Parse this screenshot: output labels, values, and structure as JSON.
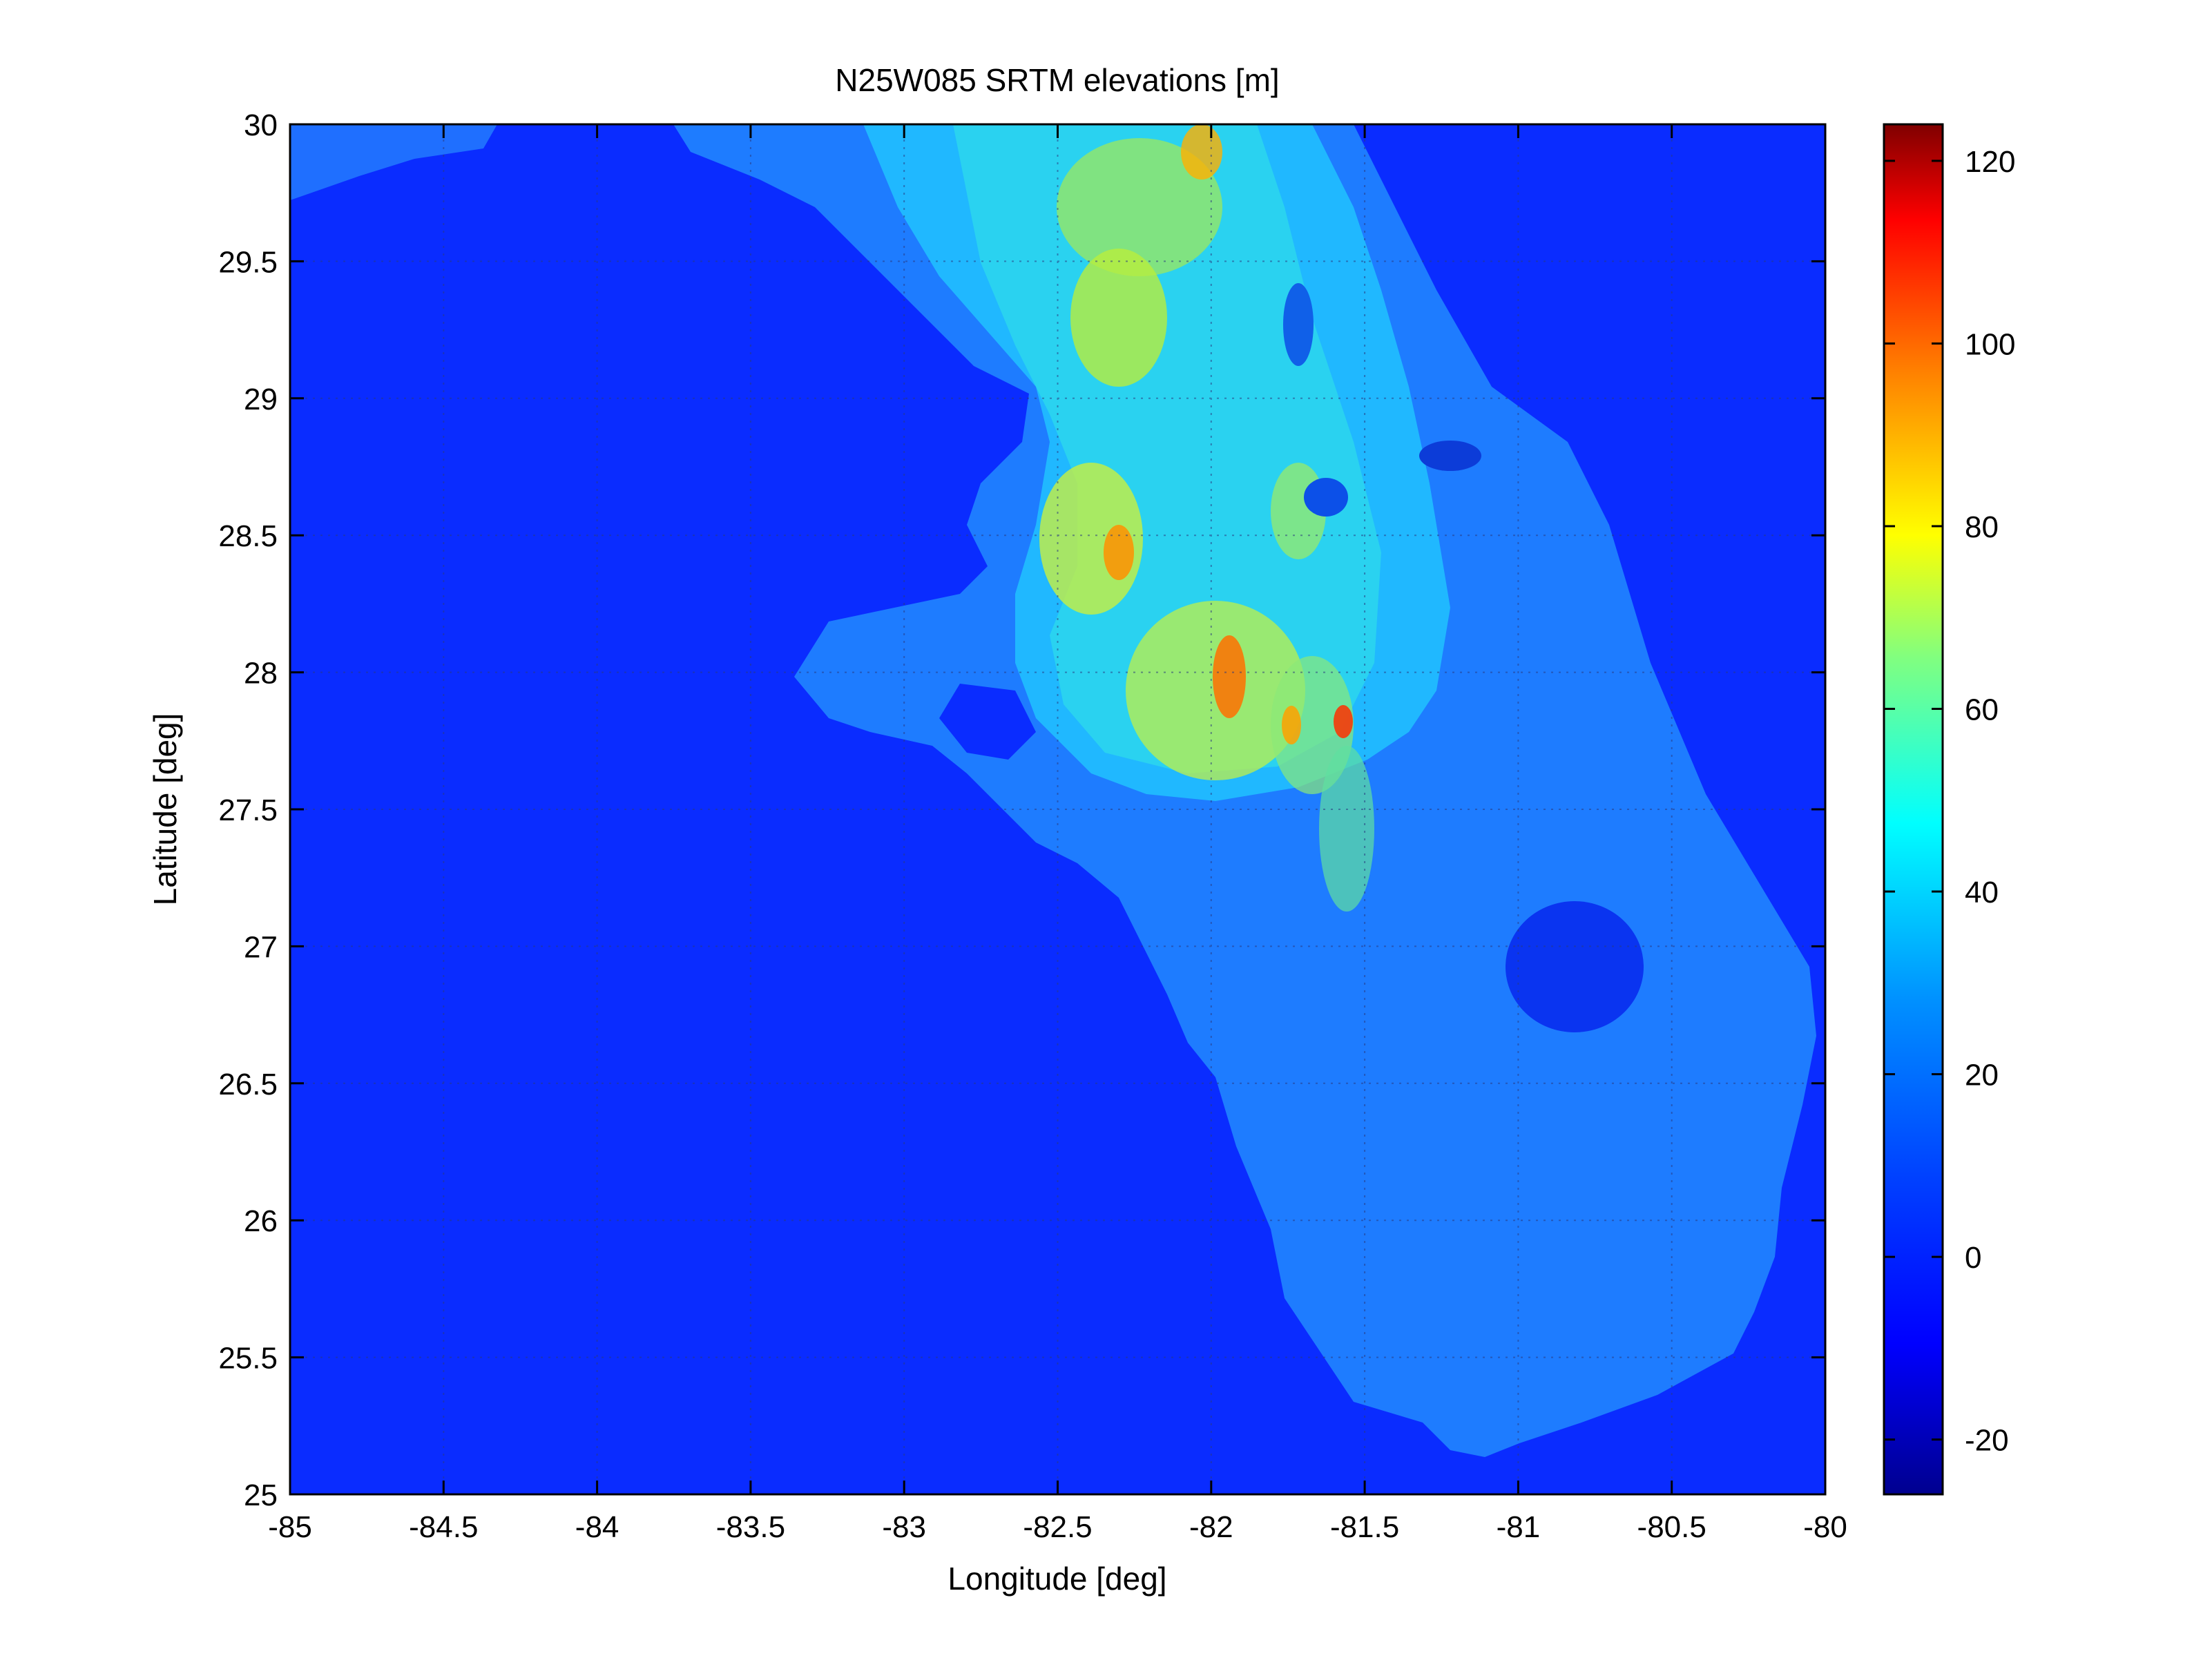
{
  "chart_data": {
    "type": "heatmap",
    "title": "N25W085 SRTM elevations [m]",
    "xlabel": "Longitude [deg]",
    "ylabel": "Latitude [deg]",
    "xlim": [
      -85,
      -80
    ],
    "ylim": [
      25,
      30
    ],
    "x_ticks": [
      "-85",
      "-84.5",
      "-84",
      "-83.5",
      "-83",
      "-82.5",
      "-82",
      "-81.5",
      "-81",
      "-80.5",
      "-80"
    ],
    "y_ticks": [
      "30",
      "29.5",
      "29",
      "28.5",
      "28",
      "27.5",
      "27",
      "26.5",
      "26",
      "25.5",
      "25"
    ],
    "grid": true,
    "colormap": "jet",
    "colorbar": {
      "range": [
        -26,
        124
      ],
      "ticks": [
        "120",
        "100",
        "80",
        "60",
        "40",
        "20",
        "0",
        "-20"
      ]
    },
    "colors": {
      "ocean": "#0a2cff",
      "jet_stops": [
        "#00008f",
        "#0000ff",
        "#0080ff",
        "#00ffff",
        "#80ff80",
        "#ffff00",
        "#ff8000",
        "#ff0000",
        "#800000"
      ]
    }
  }
}
